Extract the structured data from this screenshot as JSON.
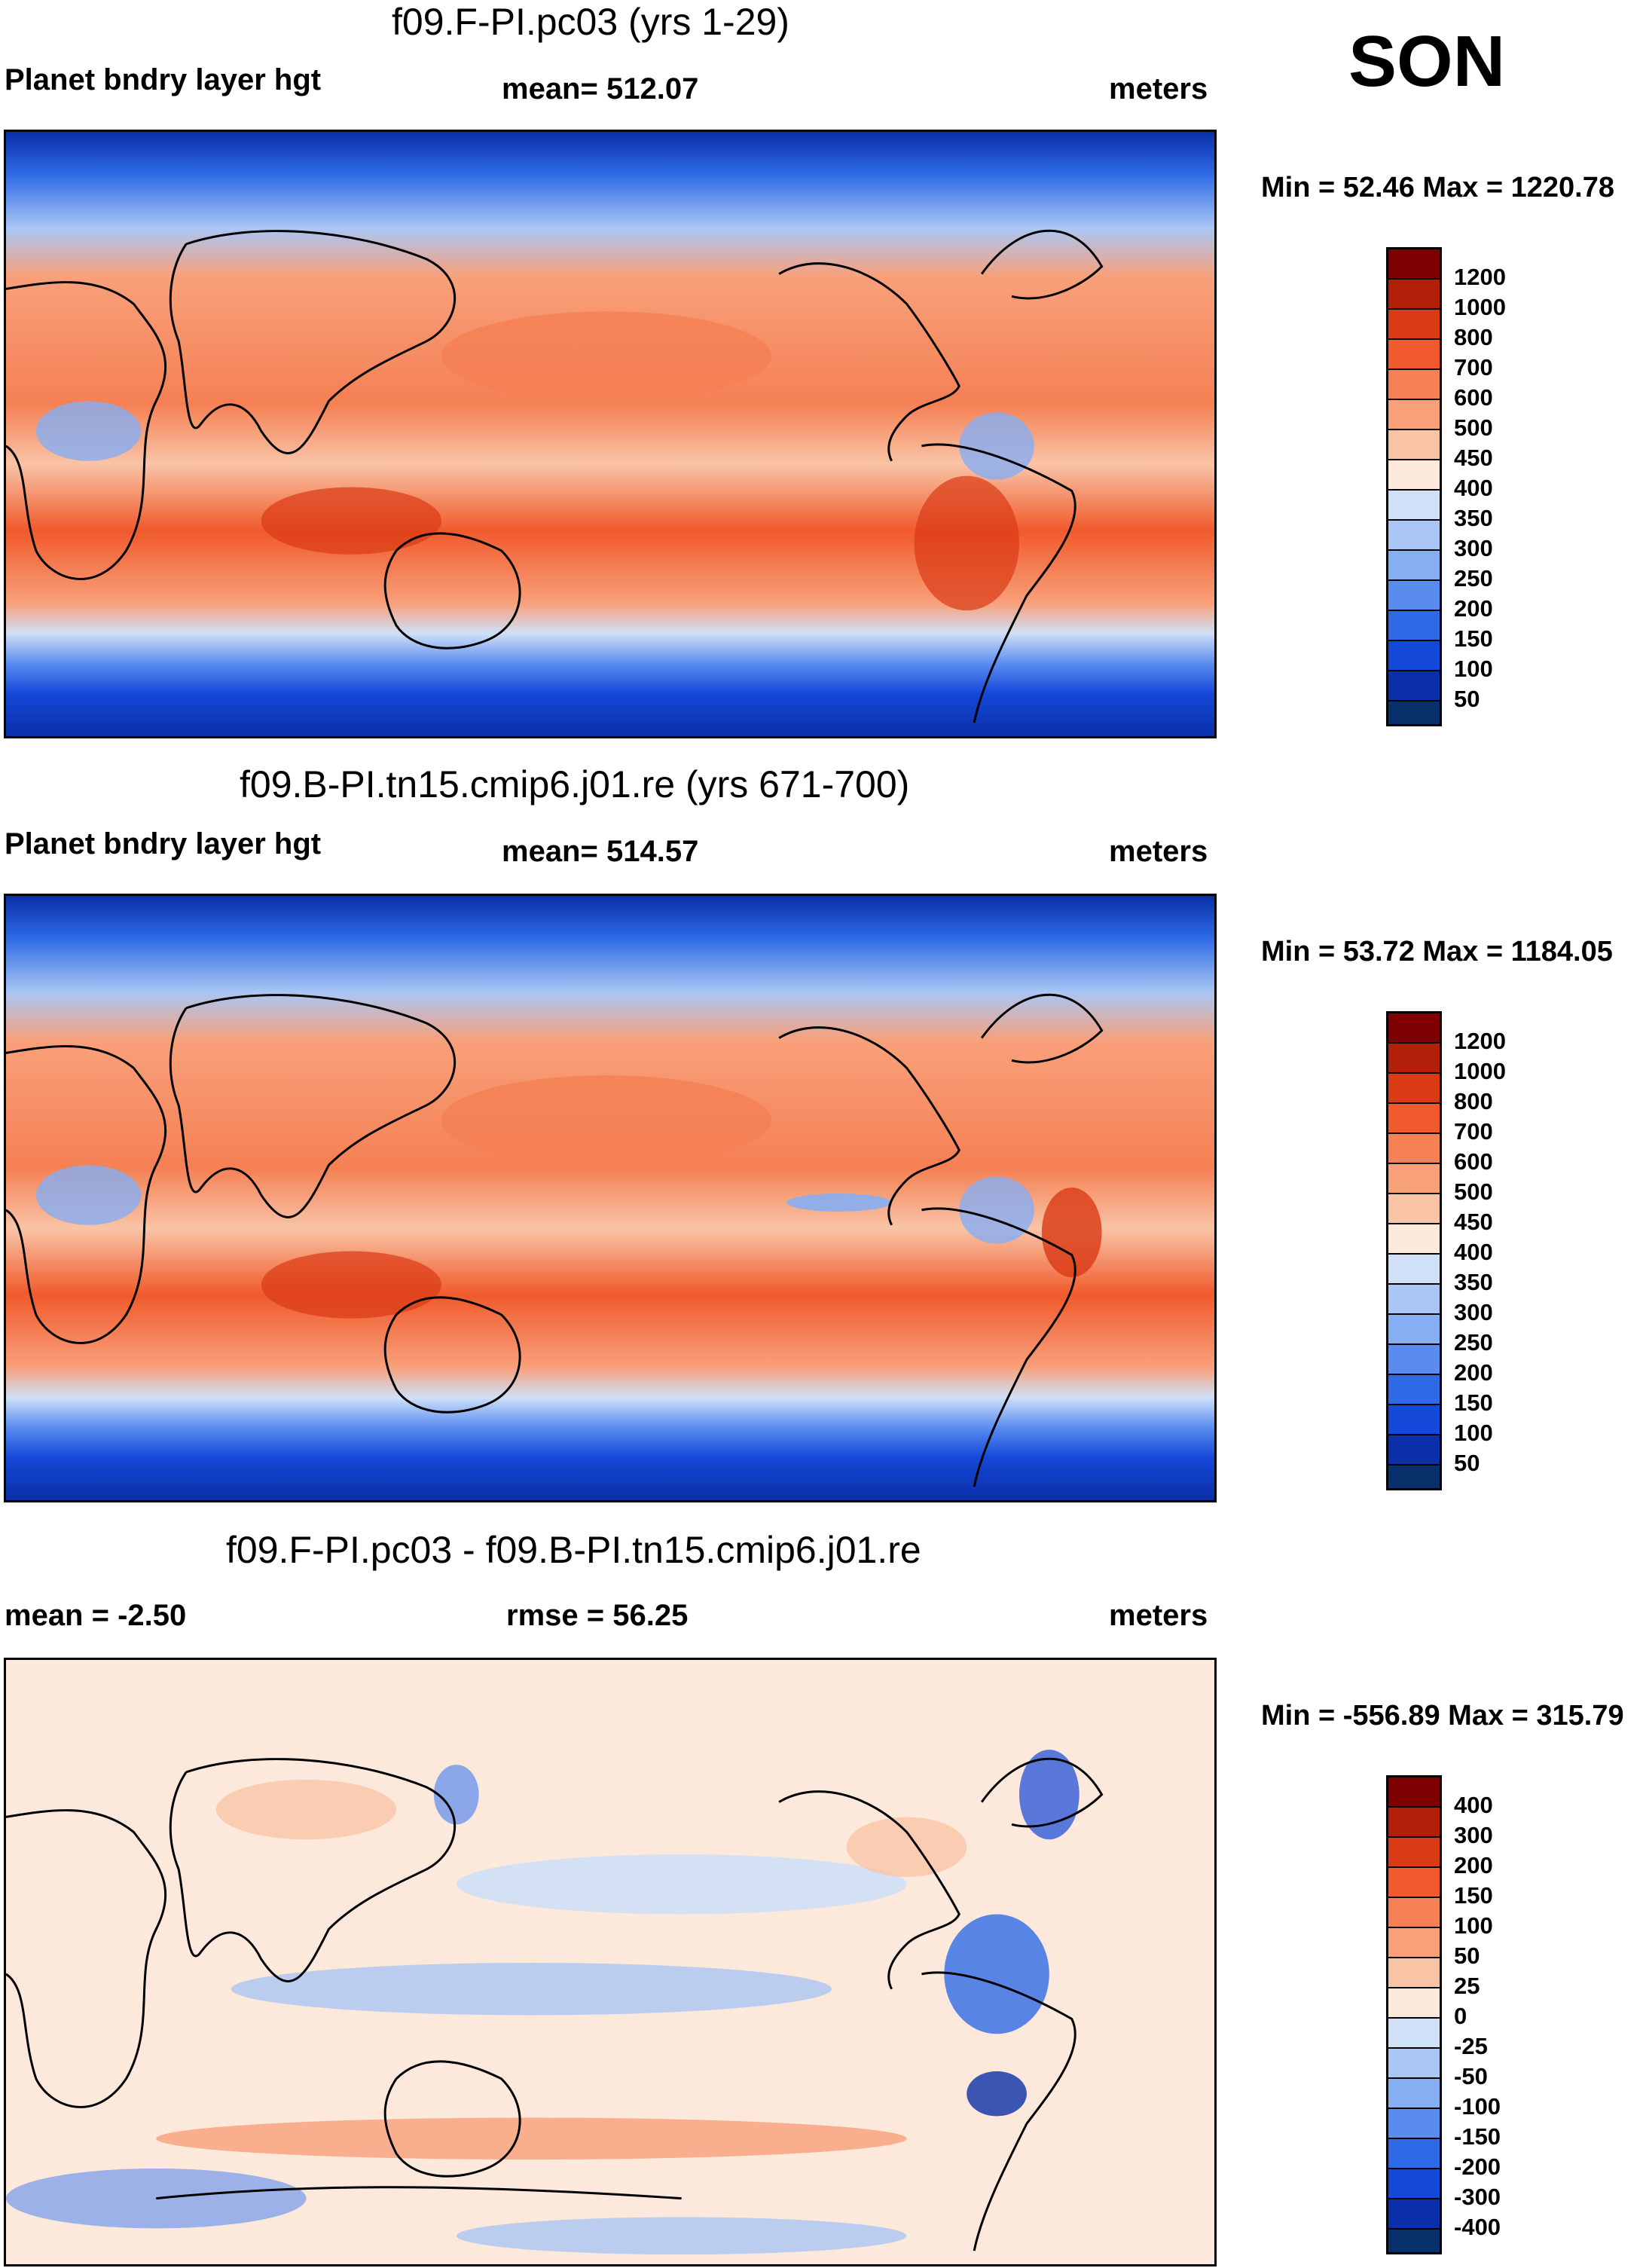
{
  "season": "SON",
  "colors": {
    "abs_scale": [
      "#08306b",
      "#0a2fa8",
      "#1448d8",
      "#2e6ae6",
      "#5a8cf0",
      "#86aef2",
      "#aac6f4",
      "#cfe0f7",
      "#fde8dc",
      "#f9c4a6",
      "#f8a07a",
      "#f58054",
      "#f05a2c",
      "#da3a14",
      "#b3200a",
      "#7f0000"
    ],
    "diff_scale": [
      "#08306b",
      "#0a2fa8",
      "#1448d8",
      "#2e6ae6",
      "#5a8cf0",
      "#86aef2",
      "#aac6f4",
      "#cfe0f7",
      "#fde8dc",
      "#f9c4a6",
      "#f8a07a",
      "#f58054",
      "#f05a2c",
      "#da3a14",
      "#b3200a",
      "#7f0000"
    ]
  },
  "panels": [
    {
      "title": "f09.F-PI.pc03 (yrs 1-29)",
      "left_label": "Planet bndry layer hgt",
      "center_label": "mean= 512.07",
      "right_label": "meters",
      "minmax": "Min =  52.46 Max = 1220.78",
      "map_icon": "world-map-pbl-height-icon"
    },
    {
      "title": "f09.B-PI.tn15.cmip6.j01.re (yrs 671-700)",
      "left_label": "Planet bndry layer hgt",
      "center_label": "mean= 514.57",
      "right_label": "meters",
      "minmax": "Min =  53.72 Max = 1184.05",
      "map_icon": "world-map-pbl-height-icon"
    },
    {
      "title": "f09.F-PI.pc03 - f09.B-PI.tn15.cmip6.j01.re",
      "left_label": "mean =  -2.50",
      "center_label": "rmse =  56.25",
      "right_label": "meters",
      "minmax": "Min = -556.89 Max = 315.79",
      "map_icon": "world-map-pbl-difference-icon"
    }
  ],
  "colorbars": {
    "abs_levels": [
      "1200",
      "1000",
      "800",
      "700",
      "600",
      "500",
      "450",
      "400",
      "350",
      "300",
      "250",
      "200",
      "150",
      "100",
      "50"
    ],
    "diff_levels": [
      "400",
      "300",
      "200",
      "150",
      "100",
      "50",
      "25",
      "0",
      "-25",
      "-50",
      "-100",
      "-150",
      "-200",
      "-300",
      "-400"
    ]
  }
}
